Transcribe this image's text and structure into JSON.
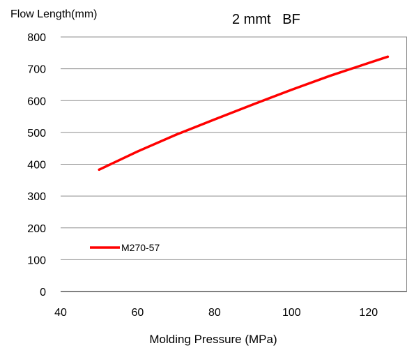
{
  "chart_data": {
    "type": "line",
    "title": "2 mmt   BF",
    "xlabel": "Molding Pressure (MPa)",
    "ylabel": "Flow Length(mm)",
    "xlim": [
      40,
      130
    ],
    "ylim": [
      0,
      800
    ],
    "x_ticks": [
      "40",
      "60",
      "80",
      "100",
      "120"
    ],
    "y_ticks": [
      "0",
      "100",
      "200",
      "300",
      "400",
      "500",
      "600",
      "700",
      "800"
    ],
    "grid": "horizontal",
    "legend_position": "lower-left",
    "series": [
      {
        "name": "M270-57",
        "color": "#ff0000",
        "x": [
          50,
          60,
          70,
          80,
          90,
          100,
          110,
          120,
          125
        ],
        "y": [
          383,
          440,
          493,
          541,
          588,
          634,
          678,
          718,
          738
        ]
      }
    ]
  }
}
